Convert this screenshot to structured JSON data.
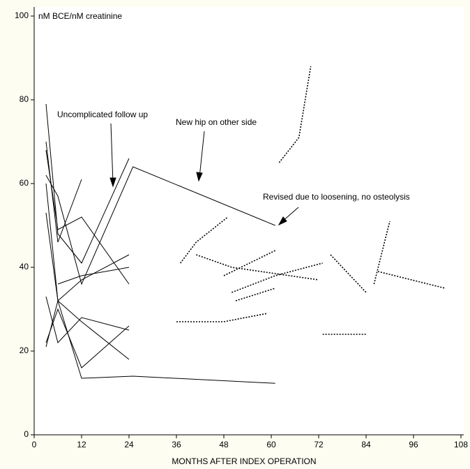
{
  "chart_data": {
    "type": "line",
    "y_label": "nM BCE/nM creatinine",
    "x_label": "MONTHS AFTER INDEX OPERATION",
    "annotations": [
      "Uncomplicated follow up",
      "New hip on other side",
      "Revised due to loosening, no osteolysis"
    ],
    "xlim": [
      0,
      108
    ],
    "xticks": [
      0,
      12,
      24,
      36,
      48,
      60,
      72,
      84,
      96,
      108
    ],
    "ylim": [
      0,
      100
    ],
    "yticks": [
      0,
      20,
      40,
      60,
      80,
      100
    ],
    "series": [
      {
        "x": [
          3,
          6,
          12,
          24
        ],
        "values": [
          79,
          48,
          41,
          66
        ],
        "color": "#000000",
        "dashed": false
      },
      {
        "x": [
          3,
          6,
          12
        ],
        "values": [
          70,
          46,
          61
        ],
        "color": "#000000",
        "dashed": false
      },
      {
        "x": [
          3,
          6,
          12,
          24
        ],
        "values": [
          68,
          49,
          52,
          36
        ],
        "color": "#000000",
        "dashed": false
      },
      {
        "x": [
          3,
          6,
          12,
          25,
          61
        ],
        "values": [
          62,
          57,
          36,
          64,
          50
        ],
        "color": "#000000",
        "dashed": false
      },
      {
        "x": [
          3,
          6,
          12,
          24
        ],
        "values": [
          53,
          32,
          37,
          43
        ],
        "color": "#000000",
        "dashed": false
      },
      {
        "x": [
          3,
          6,
          12,
          24
        ],
        "values": [
          33,
          22,
          28,
          25
        ],
        "color": "#000000",
        "dashed": false
      },
      {
        "x": [
          3,
          6,
          12,
          24
        ],
        "values": [
          22,
          30,
          16,
          26
        ],
        "color": "#000000",
        "dashed": false
      },
      {
        "x": [
          3,
          6,
          12,
          25,
          61
        ],
        "values": [
          21,
          32,
          13.5,
          14,
          12.3
        ],
        "color": "#000000",
        "dashed": false
      },
      {
        "x": [
          3,
          6,
          12,
          24
        ],
        "values": [
          60,
          32,
          27,
          18
        ],
        "color": "#000000",
        "dashed": false
      },
      {
        "x": [
          6,
          12,
          24
        ],
        "values": [
          36,
          38,
          40
        ],
        "color": "#000000",
        "dashed": false
      },
      {
        "x": [
          62,
          67,
          70
        ],
        "values": [
          65,
          71,
          88
        ],
        "color": "#000000",
        "dashed": true
      },
      {
        "x": [
          37,
          41,
          49
        ],
        "values": [
          41,
          46,
          52
        ],
        "color": "#000000",
        "dashed": true
      },
      {
        "x": [
          41,
          50,
          72
        ],
        "values": [
          43,
          40,
          37
        ],
        "color": "#000000",
        "dashed": true
      },
      {
        "x": [
          48,
          61
        ],
        "values": [
          38,
          44
        ],
        "color": "#000000",
        "dashed": true
      },
      {
        "x": [
          50,
          61,
          73
        ],
        "values": [
          34,
          38,
          41
        ],
        "color": "#000000",
        "dashed": true
      },
      {
        "x": [
          51,
          61
        ],
        "values": [
          32,
          35
        ],
        "color": "#000000",
        "dashed": true
      },
      {
        "x": [
          36,
          48,
          59
        ],
        "values": [
          27,
          27,
          29
        ],
        "color": "#000000",
        "dashed": true
      },
      {
        "x": [
          75,
          84
        ],
        "values": [
          43,
          34
        ],
        "color": "#000000",
        "dashed": true
      },
      {
        "x": [
          86,
          90
        ],
        "values": [
          36,
          51
        ],
        "color": "#000000",
        "dashed": true
      },
      {
        "x": [
          87,
          104
        ],
        "values": [
          39,
          35
        ],
        "color": "#000000",
        "dashed": true
      },
      {
        "x": [
          73,
          84
        ],
        "values": [
          24,
          24
        ],
        "color": "#000000",
        "dashed": true
      }
    ]
  }
}
